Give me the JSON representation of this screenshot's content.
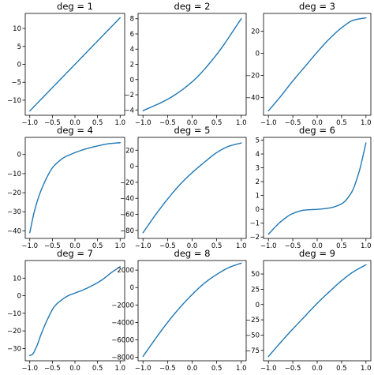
{
  "style": {
    "line_color": "#1f77b4",
    "background": "#ffffff"
  },
  "chart_data": [
    {
      "type": "line",
      "title": "deg = 1",
      "xlim": [
        -1.1,
        1.1
      ],
      "ylim": [
        -14.2,
        14.2
      ],
      "xticks": [
        -1.0,
        -0.5,
        0.0,
        0.5,
        1.0
      ],
      "xtick_labels": [
        "−1.0",
        "−0.5",
        "0.0",
        "0.5",
        "1.0"
      ],
      "yticks": [
        10,
        5,
        0,
        -5,
        -10
      ],
      "ytick_labels": [
        "10",
        "5",
        "0",
        "−5",
        "−10"
      ],
      "series": [
        {
          "x": [
            -1.0,
            -0.5,
            0.0,
            0.5,
            1.0
          ],
          "y": [
            -13.0,
            -6.5,
            0.0,
            6.5,
            13.0
          ]
        }
      ]
    },
    {
      "type": "line",
      "title": "deg = 2",
      "xlim": [
        -1.1,
        1.1
      ],
      "ylim": [
        -4.7,
        8.7
      ],
      "xticks": [
        -1.0,
        -0.5,
        0.0,
        0.5,
        1.0
      ],
      "xtick_labels": [
        "−1.0",
        "−0.5",
        "0.0",
        "0.5",
        "1.0"
      ],
      "yticks": [
        8,
        6,
        4,
        2,
        0,
        -2,
        -4
      ],
      "ytick_labels": [
        "8",
        "6",
        "4",
        "2",
        "0",
        "−2",
        "−4"
      ],
      "series": [
        {
          "x": [
            -1.0,
            -0.5,
            0.0,
            0.5,
            1.0
          ],
          "y": [
            -4.1,
            -2.6,
            -0.3,
            3.3,
            8.0
          ]
        }
      ]
    },
    {
      "type": "line",
      "title": "deg = 3",
      "xlim": [
        -1.1,
        1.1
      ],
      "ylim": [
        -56,
        36
      ],
      "xticks": [
        -1.0,
        -0.5,
        0.0,
        0.5,
        1.0
      ],
      "xtick_labels": [
        "−1.0",
        "−0.5",
        "0.0",
        "0.5",
        "1.0"
      ],
      "yticks": [
        20,
        0,
        -20,
        -40
      ],
      "ytick_labels": [
        "20",
        "0",
        "−20",
        "−40"
      ],
      "series": [
        {
          "x": [
            -1.0,
            -0.75,
            -0.5,
            -0.25,
            0.0,
            0.25,
            0.5,
            0.75,
            1.0
          ],
          "y": [
            -52,
            -39,
            -25,
            -12,
            1,
            13,
            23,
            30,
            32
          ]
        }
      ]
    },
    {
      "type": "line",
      "title": "deg = 4",
      "xlim": [
        -1.1,
        1.1
      ],
      "ylim": [
        -44,
        9
      ],
      "xticks": [
        -1.0,
        -0.5,
        0.0,
        0.5,
        1.0
      ],
      "xtick_labels": [
        "−1.0",
        "−0.5",
        "0.0",
        "0.5",
        "1.0"
      ],
      "yticks": [
        0,
        -10,
        -20,
        -30,
        -40
      ],
      "ytick_labels": [
        "0",
        "−10",
        "−20",
        "−30",
        "−40"
      ],
      "series": [
        {
          "x": [
            -1.0,
            -0.9,
            -0.8,
            -0.7,
            -0.6,
            -0.5,
            -0.4,
            -0.3,
            -0.2,
            -0.1,
            0.0,
            0.25,
            0.5,
            0.75,
            1.0
          ],
          "y": [
            -41,
            -30,
            -22,
            -16,
            -11,
            -7,
            -4.5,
            -2.5,
            -1,
            0,
            1,
            3,
            4.5,
            5.7,
            6.2
          ]
        }
      ]
    },
    {
      "type": "line",
      "title": "deg = 5",
      "xlim": [
        -1.1,
        1.1
      ],
      "ylim": [
        -90,
        36
      ],
      "xticks": [
        -1.0,
        -0.5,
        0.0,
        0.5,
        1.0
      ],
      "xtick_labels": [
        "−1.0",
        "−0.5",
        "0.0",
        "0.5",
        "1.0"
      ],
      "yticks": [
        20,
        0,
        -20,
        -40,
        -60,
        -80
      ],
      "ytick_labels": [
        "20",
        "0",
        "−20",
        "−40",
        "−60",
        "−80"
      ],
      "series": [
        {
          "x": [
            -1.0,
            -0.75,
            -0.5,
            -0.25,
            0.0,
            0.25,
            0.5,
            0.75,
            1.0
          ],
          "y": [
            -83,
            -61,
            -41,
            -23,
            -8,
            5,
            17,
            25,
            29
          ]
        }
      ]
    },
    {
      "type": "line",
      "title": "deg = 6",
      "xlim": [
        -1.1,
        1.1
      ],
      "ylim": [
        -2.1,
        5.2
      ],
      "xticks": [
        -1.0,
        -0.5,
        0.0,
        0.5,
        1.0
      ],
      "xtick_labels": [
        "−1.0",
        "−0.5",
        "0.0",
        "0.5",
        "1.0"
      ],
      "yticks": [
        5,
        4,
        3,
        2,
        1,
        0,
        -1,
        -2
      ],
      "ytick_labels": [
        "5",
        "4",
        "3",
        "2",
        "1",
        "0",
        "−1",
        "−2"
      ],
      "series": [
        {
          "x": [
            -1.0,
            -0.75,
            -0.5,
            -0.25,
            0.0,
            0.25,
            0.5,
            0.7,
            0.85,
            1.0
          ],
          "y": [
            -1.8,
            -0.9,
            -0.3,
            -0.05,
            0.0,
            0.1,
            0.4,
            1.2,
            2.6,
            4.8
          ]
        }
      ]
    },
    {
      "type": "line",
      "title": "deg = 7",
      "xlim": [
        -1.1,
        1.1
      ],
      "ylim": [
        -37,
        20
      ],
      "xticks": [
        -1.0,
        -0.5,
        0.0,
        0.5,
        1.0
      ],
      "xtick_labels": [
        "−1.0",
        "−0.5",
        "0.0",
        "0.5",
        "1.0"
      ],
      "yticks": [
        10,
        0,
        -10,
        -20,
        -30
      ],
      "ytick_labels": [
        "10",
        "0",
        "−10",
        "−20",
        "−30"
      ],
      "series": [
        {
          "x": [
            -1.0,
            -0.95,
            -0.85,
            -0.75,
            -0.6,
            -0.45,
            -0.3,
            -0.15,
            0.0,
            0.2,
            0.4,
            0.6,
            0.8,
            1.0
          ],
          "y": [
            -34,
            -33.5,
            -29,
            -22,
            -13,
            -6,
            -2.5,
            0,
            1.5,
            3.5,
            6,
            9,
            13,
            16.5
          ]
        }
      ]
    },
    {
      "type": "line",
      "title": "deg = 8",
      "xlim": [
        -1.1,
        1.1
      ],
      "ylim": [
        -8400,
        3100
      ],
      "xticks": [
        -1.0,
        -0.5,
        0.0,
        0.5,
        1.0
      ],
      "xtick_labels": [
        "−1.0",
        "−0.5",
        "0.0",
        "0.5",
        "1.0"
      ],
      "yticks": [
        2000,
        0,
        -2000,
        -4000,
        -6000,
        -8000
      ],
      "ytick_labels": [
        "2000",
        "0",
        "−2000",
        "−4000",
        "−6000",
        "−8000"
      ],
      "series": [
        {
          "x": [
            -1.0,
            -0.75,
            -0.5,
            -0.25,
            0.0,
            0.25,
            0.5,
            0.75,
            1.0
          ],
          "y": [
            -7900,
            -5900,
            -4000,
            -2300,
            -800,
            500,
            1500,
            2300,
            2800
          ]
        }
      ]
    },
    {
      "type": "line",
      "title": "deg = 9",
      "xlim": [
        -1.1,
        1.1
      ],
      "ylim": [
        -92,
        72
      ],
      "xticks": [
        -1.0,
        -0.5,
        0.0,
        0.5,
        1.0
      ],
      "xtick_labels": [
        "−1.0",
        "−0.5",
        "0.0",
        "0.5",
        "1.0"
      ],
      "yticks": [
        50,
        25,
        0,
        -25,
        -50,
        -75
      ],
      "ytick_labels": [
        "50",
        "25",
        "0",
        "−25",
        "−50",
        "−75"
      ],
      "series": [
        {
          "x": [
            -1.0,
            -0.75,
            -0.5,
            -0.25,
            0.0,
            0.25,
            0.5,
            0.75,
            1.0
          ],
          "y": [
            -85,
            -62,
            -40,
            -19,
            2,
            21,
            39,
            54,
            65
          ]
        }
      ]
    }
  ]
}
